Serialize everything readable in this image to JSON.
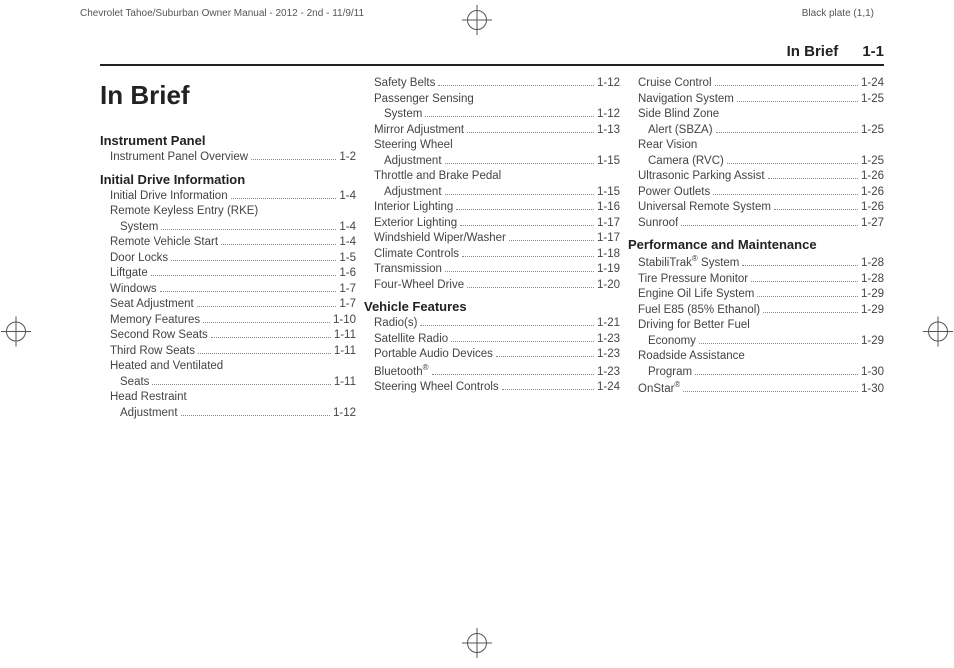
{
  "manual_header_left": "Chevrolet Tahoe/Suburban Owner Manual - 2012 - 2nd - 11/9/11",
  "manual_header_right": "Black plate (1,1)",
  "running_head": {
    "section": "In Brief",
    "page": "1-1"
  },
  "chapter_title": "In Brief",
  "columns": [
    {
      "blocks": [
        {
          "heading": "Instrument Panel",
          "entries": [
            {
              "label": "Instrument Panel Overview",
              "page": "1-2",
              "indent": 1
            }
          ]
        },
        {
          "heading": "Initial Drive Information",
          "entries": [
            {
              "label": "Initial Drive Information",
              "page": "1-4",
              "indent": 1
            },
            {
              "label": "Remote Keyless Entry (RKE)",
              "wrap": true,
              "indent": 1
            },
            {
              "label": "System",
              "page": "1-4",
              "indent": 2
            },
            {
              "label": "Remote Vehicle Start",
              "page": "1-4",
              "indent": 1
            },
            {
              "label": "Door Locks",
              "page": "1-5",
              "indent": 1
            },
            {
              "label": "Liftgate",
              "page": "1-6",
              "indent": 1
            },
            {
              "label": "Windows",
              "page": "1-7",
              "indent": 1
            },
            {
              "label": "Seat Adjustment",
              "page": "1-7",
              "indent": 1
            },
            {
              "label": "Memory Features",
              "page": "1-10",
              "indent": 1
            },
            {
              "label": "Second Row Seats",
              "page": "1-11",
              "indent": 1
            },
            {
              "label": "Third Row Seats",
              "page": "1-11",
              "indent": 1
            },
            {
              "label": "Heated and Ventilated",
              "wrap": true,
              "indent": 1
            },
            {
              "label": "Seats",
              "page": "1-11",
              "indent": 2
            },
            {
              "label": "Head Restraint",
              "wrap": true,
              "indent": 1
            },
            {
              "label": "Adjustment",
              "page": "1-12",
              "indent": 2
            }
          ]
        }
      ]
    },
    {
      "blocks": [
        {
          "entries": [
            {
              "label": "Safety Belts",
              "page": "1-12",
              "indent": 1
            },
            {
              "label": "Passenger Sensing",
              "wrap": true,
              "indent": 1
            },
            {
              "label": "System",
              "page": "1-12",
              "indent": 2
            },
            {
              "label": "Mirror Adjustment",
              "page": "1-13",
              "indent": 1
            },
            {
              "label": "Steering Wheel",
              "wrap": true,
              "indent": 1
            },
            {
              "label": "Adjustment",
              "page": "1-15",
              "indent": 2
            },
            {
              "label": "Throttle and Brake Pedal",
              "wrap": true,
              "indent": 1
            },
            {
              "label": "Adjustment",
              "page": "1-15",
              "indent": 2
            },
            {
              "label": "Interior Lighting",
              "page": "1-16",
              "indent": 1
            },
            {
              "label": "Exterior Lighting",
              "page": "1-17",
              "indent": 1
            },
            {
              "label": "Windshield Wiper/Washer",
              "page": "1-17",
              "indent": 1
            },
            {
              "label": "Climate Controls",
              "page": "1-18",
              "indent": 1
            },
            {
              "label": "Transmission",
              "page": "1-19",
              "indent": 1
            },
            {
              "label": "Four-Wheel Drive",
              "page": "1-20",
              "indent": 1
            }
          ]
        },
        {
          "heading": "Vehicle Features",
          "entries": [
            {
              "label": "Radio(s)",
              "page": "1-21",
              "indent": 1
            },
            {
              "label": "Satellite Radio",
              "page": "1-23",
              "indent": 1
            },
            {
              "label": "Portable Audio Devices",
              "page": "1-23",
              "indent": 1
            },
            {
              "label": "Bluetooth",
              "sup": "®",
              "page": "1-23",
              "indent": 1
            },
            {
              "label": "Steering Wheel Controls",
              "page": "1-24",
              "indent": 1
            }
          ]
        }
      ]
    },
    {
      "blocks": [
        {
          "entries": [
            {
              "label": "Cruise Control",
              "page": "1-24",
              "indent": 1
            },
            {
              "label": "Navigation System",
              "page": "1-25",
              "indent": 1
            },
            {
              "label": "Side Blind Zone",
              "wrap": true,
              "indent": 1
            },
            {
              "label": "Alert (SBZA)",
              "page": "1-25",
              "indent": 2
            },
            {
              "label": "Rear Vision",
              "wrap": true,
              "indent": 1
            },
            {
              "label": "Camera (RVC)",
              "page": "1-25",
              "indent": 2
            },
            {
              "label": "Ultrasonic Parking Assist",
              "page": "1-26",
              "indent": 1
            },
            {
              "label": "Power Outlets",
              "page": "1-26",
              "indent": 1
            },
            {
              "label": "Universal Remote System",
              "page": "1-26",
              "indent": 1
            },
            {
              "label": "Sunroof",
              "page": "1-27",
              "indent": 1
            }
          ]
        },
        {
          "heading": "Performance and Maintenance",
          "entries": [
            {
              "label": "StabiliTrak",
              "sup": "®",
              "label2": " System",
              "page": "1-28",
              "indent": 1
            },
            {
              "label": "Tire Pressure Monitor",
              "page": "1-28",
              "indent": 1
            },
            {
              "label": "Engine Oil Life System",
              "page": "1-29",
              "indent": 1
            },
            {
              "label": "Fuel E85 (85% Ethanol)",
              "page": "1-29",
              "indent": 1
            },
            {
              "label": "Driving for Better Fuel",
              "wrap": true,
              "indent": 1
            },
            {
              "label": "Economy",
              "page": "1-29",
              "indent": 2
            },
            {
              "label": "Roadside Assistance",
              "wrap": true,
              "indent": 1
            },
            {
              "label": "Program",
              "page": "1-30",
              "indent": 2
            },
            {
              "label": "OnStar",
              "sup": "®",
              "page": "1-30",
              "indent": 1
            }
          ]
        }
      ]
    }
  ]
}
